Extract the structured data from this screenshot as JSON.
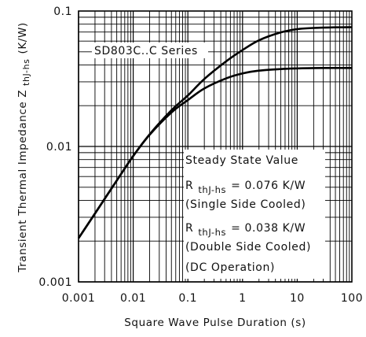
{
  "chart_data": {
    "type": "line",
    "xlabel": "Square Wave Pulse Duration (s)",
    "ylabel": "Transient Thermal Impedance Z",
    "ylabel_sub": "thJ-hs",
    "ylabel_unit": "(K/W)",
    "x_scale": "log",
    "y_scale": "log",
    "xlim": [
      0.001,
      100
    ],
    "ylim": [
      0.001,
      0.1
    ],
    "grid": true,
    "x_ticks": [
      "0.001",
      "0.01",
      "0.1",
      "1",
      "10",
      "100"
    ],
    "y_ticks": [
      "0.1",
      "0.01",
      "0.001"
    ],
    "series_label": "SD803C..C Series",
    "series": [
      {
        "condition": "Single Side Cooled",
        "x": [
          0.001,
          0.002,
          0.005,
          0.01,
          0.02,
          0.05,
          0.1,
          0.2,
          0.5,
          1,
          2,
          5,
          10,
          20,
          50,
          100
        ],
        "y": [
          0.0021,
          0.0032,
          0.0056,
          0.0085,
          0.0123,
          0.0185,
          0.0238,
          0.0315,
          0.0425,
          0.0515,
          0.0608,
          0.0695,
          0.0735,
          0.075,
          0.0758,
          0.076
        ]
      },
      {
        "condition": "Double Side Cooled",
        "x": [
          0.001,
          0.002,
          0.005,
          0.01,
          0.02,
          0.05,
          0.1,
          0.2,
          0.5,
          1,
          2,
          5,
          10,
          20,
          50,
          100
        ],
        "y": [
          0.0021,
          0.0032,
          0.0056,
          0.0085,
          0.0122,
          0.0178,
          0.022,
          0.0268,
          0.0318,
          0.0346,
          0.0363,
          0.0373,
          0.0377,
          0.0379,
          0.038,
          0.038
        ]
      }
    ],
    "annotation": {
      "title": "Steady State Value",
      "r_symbol": "R",
      "r_sub": "thJ-hs",
      "single_value": "= 0.076 K/W",
      "single_label": "(Single Side Cooled)",
      "double_value": "= 0.038 K/W",
      "double_label": "(Double Side Cooled)",
      "dc_label": "(DC Operation)"
    }
  }
}
